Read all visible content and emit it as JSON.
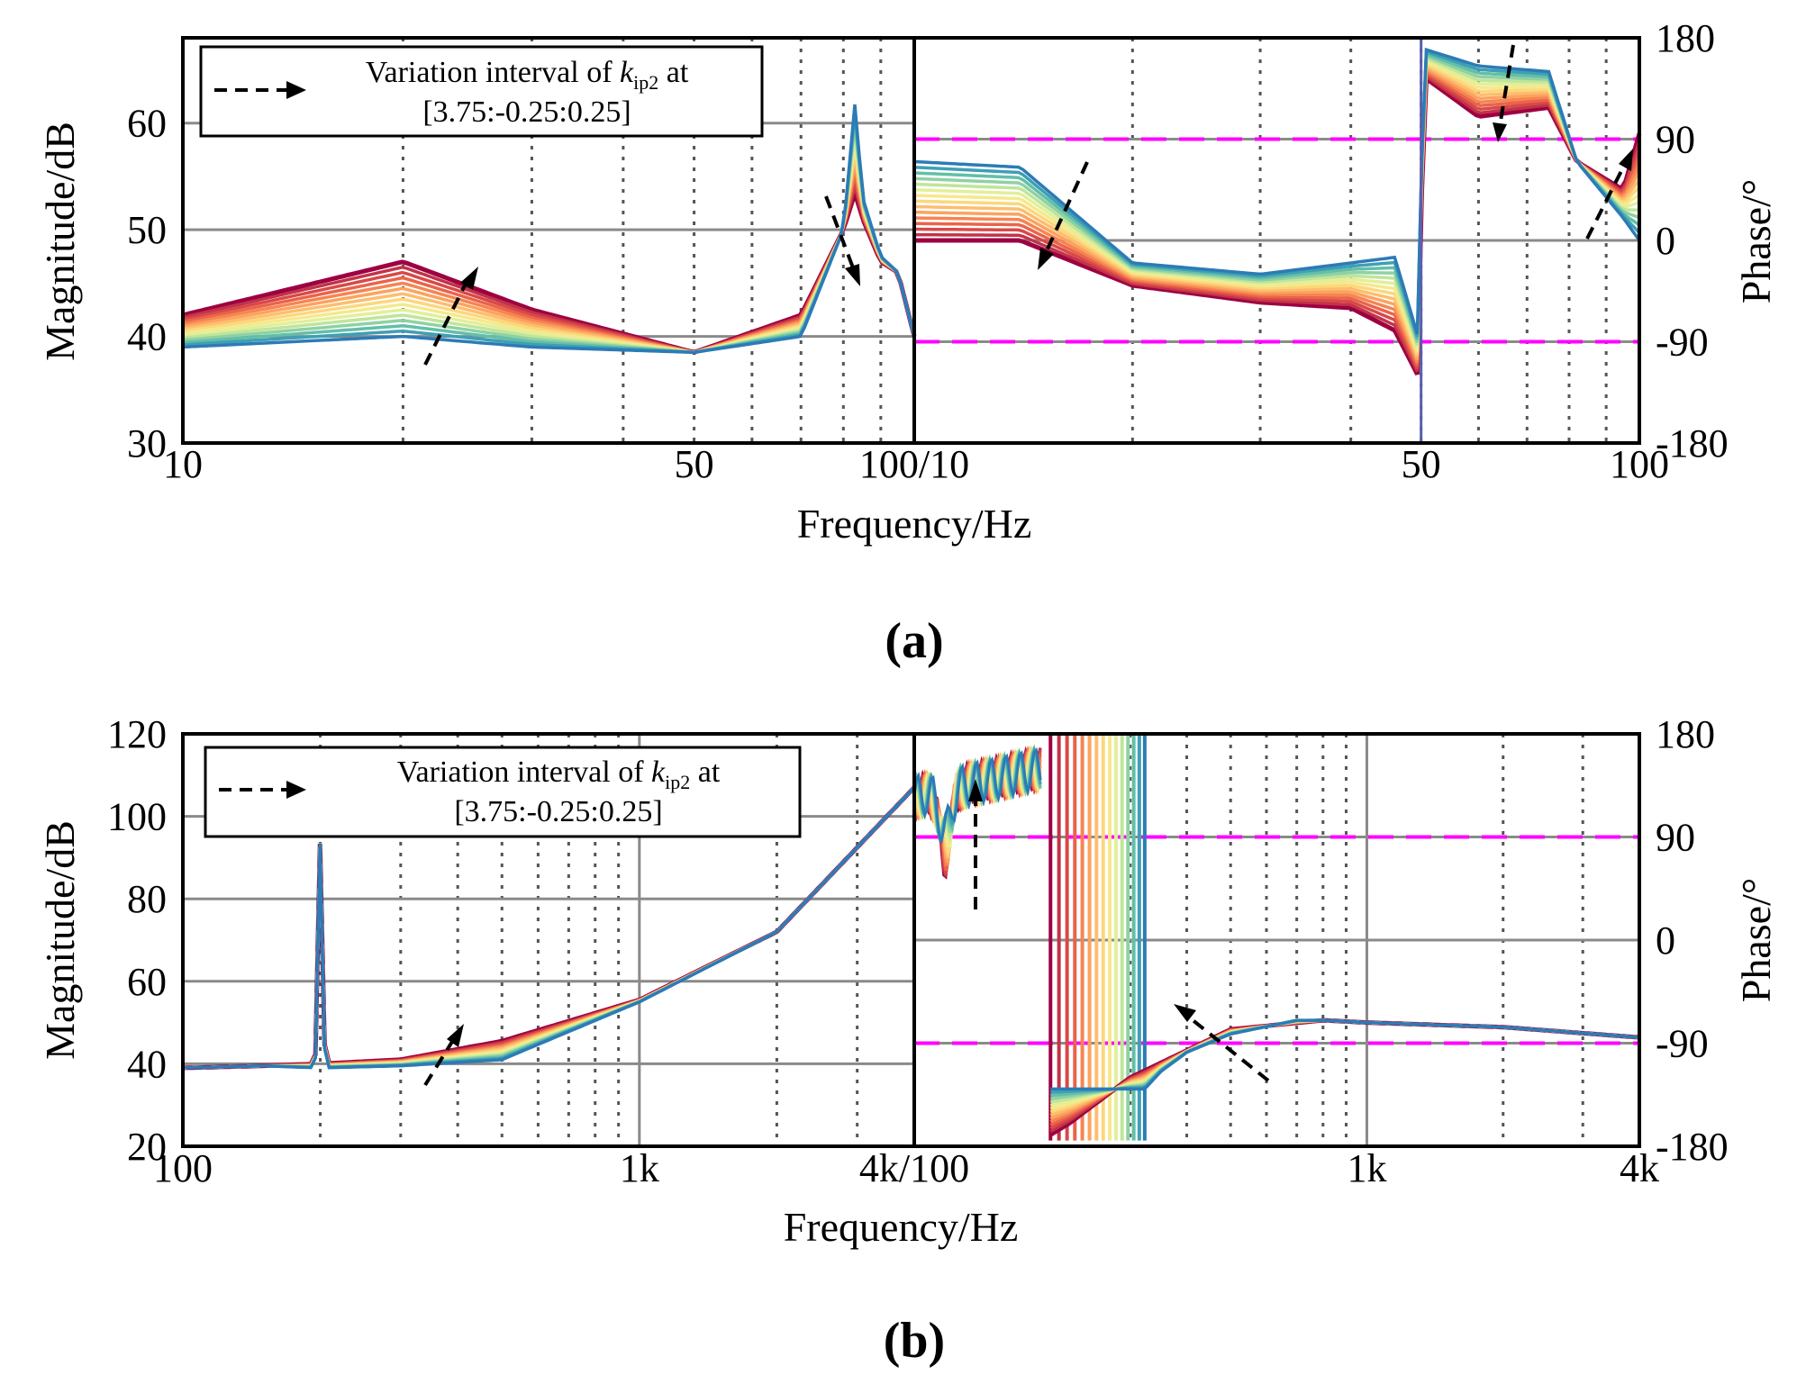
{
  "chart_data": [
    {
      "panel": "(a)",
      "type": "line",
      "xlabel": "Frequency/Hz",
      "legend": {
        "line1_prefix": "Variation interval of ",
        "symbol": "k",
        "subscript": "ip2",
        "line1_suffix": " at",
        "line2": "[3.75:-0.25:0.25]"
      },
      "magnitude": {
        "ylabel": "Magnitude/dB",
        "xscale": "log",
        "xlim": [
          10,
          100
        ],
        "ylim": [
          30,
          68
        ],
        "yticks": [
          30,
          40,
          50,
          60
        ],
        "xtick_labels": [
          {
            "value": 10,
            "label": "10"
          },
          {
            "value": 50,
            "label": "50"
          }
        ],
        "shared_label": "100/10",
        "n_curves": 15,
        "series_first": {
          "name": "kip2 = 3.75",
          "x": [
            10,
            20,
            30,
            50,
            70,
            80,
            83,
            85,
            90,
            95,
            100
          ],
          "y": [
            42,
            47,
            42.5,
            38.5,
            42,
            50,
            53.5,
            51,
            47,
            46,
            40
          ]
        },
        "series_last": {
          "name": "kip2 = 0.25",
          "x": [
            10,
            20,
            30,
            50,
            70,
            80,
            83,
            85,
            90,
            95,
            100
          ],
          "y": [
            39,
            40,
            39,
            38.5,
            40,
            50,
            62,
            53,
            47.5,
            46,
            40
          ]
        }
      },
      "phase": {
        "ylabel": "Phase/°",
        "xscale": "log",
        "xlim": [
          10,
          100
        ],
        "ylim": [
          -180,
          180
        ],
        "yticks": [
          -180,
          -90,
          0,
          90,
          180
        ],
        "xtick_labels": [
          {
            "value": 50,
            "label": "50"
          },
          {
            "value": 100,
            "label": "100"
          }
        ],
        "guide_lines": [
          90,
          -90
        ],
        "n_curves": 15,
        "series_first": {
          "name": "kip2 = 3.75",
          "x": [
            10,
            14,
            20,
            30,
            40,
            46,
            49.5,
            50.5,
            60,
            75,
            82,
            95,
            100
          ],
          "y": [
            0,
            0,
            -40,
            -55,
            -60,
            -80,
            -120,
            145,
            110,
            118,
            70,
            45,
            95
          ]
        },
        "series_last": {
          "name": "kip2 = 0.25",
          "x": [
            10,
            14,
            20,
            30,
            40,
            46,
            49.5,
            50.5,
            60,
            75,
            82,
            95,
            100
          ],
          "y": [
            70,
            65,
            -20,
            -30,
            -20,
            -15,
            -85,
            170,
            155,
            150,
            70,
            20,
            0
          ]
        }
      }
    },
    {
      "panel": "(b)",
      "type": "line",
      "xlabel": "Frequency/Hz",
      "legend": {
        "line1_prefix": "Variation interval of ",
        "symbol": "k",
        "subscript": "ip2",
        "line1_suffix": " at",
        "line2": "[3.75:-0.25:0.25]"
      },
      "magnitude": {
        "ylabel": "Magnitude/dB",
        "xscale": "log",
        "xlim": [
          100,
          4000
        ],
        "ylim": [
          20,
          120
        ],
        "yticks": [
          20,
          40,
          60,
          80,
          100,
          120
        ],
        "xtick_labels": [
          {
            "value": 100,
            "label": "100"
          },
          {
            "value": 1000,
            "label": "1k"
          }
        ],
        "shared_label": "4k/100",
        "n_curves": 15,
        "series_first": {
          "name": "kip2 = 3.75",
          "x": [
            100,
            150,
            200,
            300,
            500,
            1000,
            2000,
            4000
          ],
          "y": [
            39,
            39.5,
            40,
            41,
            45.5,
            55.5,
            72,
            107
          ]
        },
        "series_last": {
          "name": "kip2 = 0.25",
          "x": [
            100,
            150,
            200,
            300,
            500,
            1000,
            2000,
            4000
          ],
          "y": [
            39,
            39.5,
            39,
            39.5,
            41,
            55,
            72,
            107
          ]
        },
        "peak": {
          "x": 200,
          "y": 94
        }
      },
      "phase": {
        "ylabel": "Phase/°",
        "xscale": "log",
        "xlim": [
          100,
          4000
        ],
        "ylim": [
          -180,
          180
        ],
        "yticks": [
          -180,
          -90,
          0,
          90,
          180
        ],
        "xtick_labels": [
          {
            "value": 1000,
            "label": "1k"
          },
          {
            "value": 4000,
            "label": "4k"
          }
        ],
        "guide_lines": [
          90,
          -90
        ],
        "n_curves": 15,
        "series_first": {
          "name": "kip2 = 3.75",
          "x": [
            200,
            220,
            300,
            500,
            800,
            1000,
            2000,
            4000
          ],
          "y": [
            -170,
            -160,
            -120,
            -78,
            -70,
            -72,
            -76,
            -85
          ]
        },
        "series_last": {
          "name": "kip2 = 0.25",
          "x": [
            323,
            350,
            400,
            500,
            700,
            800,
            1000,
            2000,
            4000
          ],
          "y": [
            -130,
            -115,
            -98,
            -82,
            -70,
            -70,
            -72,
            -76,
            -85
          ]
        }
      }
    }
  ],
  "captions": {
    "a": "(a)",
    "b": "(b)"
  }
}
